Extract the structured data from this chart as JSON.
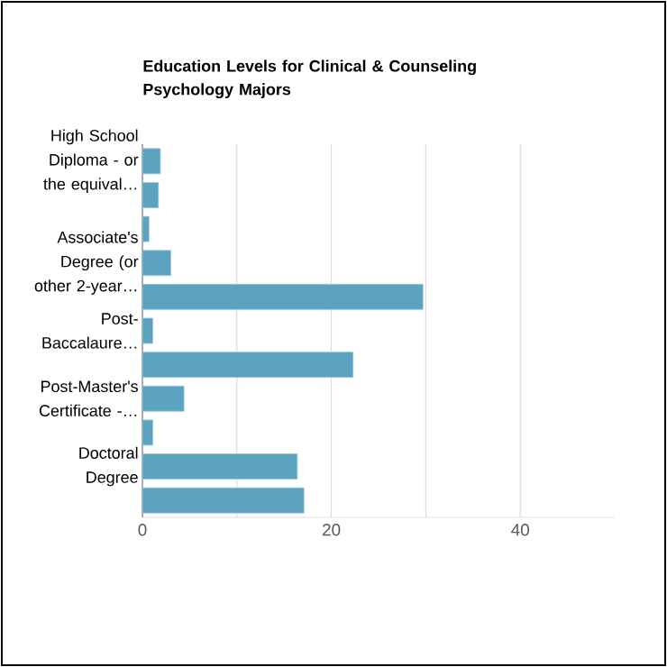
{
  "chart_data": {
    "type": "bar",
    "orientation": "horizontal",
    "title": "Education Levels for Clinical & Counseling Psychology Majors",
    "categories": [
      "High School Diploma - or the equival…",
      null,
      null,
      "Associate's Degree (or other 2-year…",
      null,
      "Post-Baccalaure…",
      null,
      "Post-Master's Certificate -…",
      null,
      "Doctoral Degree",
      null
    ],
    "values": [
      1.9,
      1.7,
      0.7,
      3.0,
      29.7,
      1.1,
      22.3,
      4.4,
      1.1,
      16.4,
      17.1
    ],
    "color": "#5ba3c0",
    "xlim": [
      0,
      50
    ],
    "xticks": [
      0,
      {
        "value": 10,
        "label": null
      },
      20,
      {
        "value": 30,
        "label": null
      },
      40
    ],
    "grid": "x"
  }
}
